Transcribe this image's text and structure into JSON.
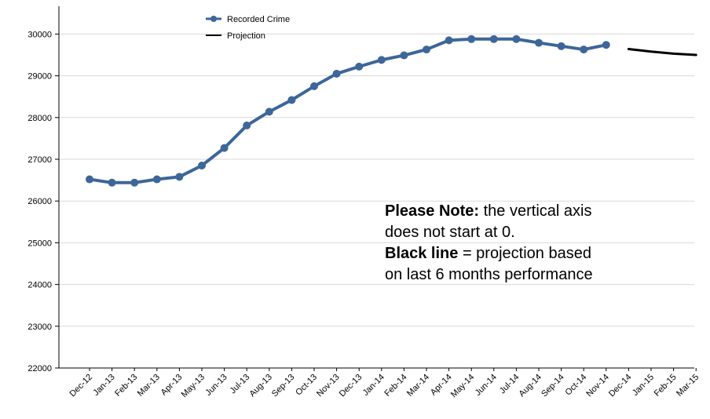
{
  "chart_data": {
    "type": "line",
    "categories": [
      "Dec-12",
      "Jan-13",
      "Feb-13",
      "Mar-13",
      "Apr-13",
      "May-13",
      "Jun-13",
      "Jul-13",
      "Aug-13",
      "Sep-13",
      "Oct-13",
      "Nov-13",
      "Dec-13",
      "Jan-14",
      "Feb-14",
      "Mar-14",
      "Apr-14",
      "May-14",
      "Jun-14",
      "Jul-14",
      "Aug-14",
      "Sep-14",
      "Oct-14",
      "Nov-14",
      "Dec-14",
      "Jan-15",
      "Feb-15",
      "Mar-15"
    ],
    "series": [
      {
        "name": "Recorded Crime",
        "color": "#3d6699",
        "marker": "circle",
        "values": [
          26520,
          26440,
          26440,
          26520,
          26580,
          26850,
          27270,
          27810,
          28140,
          28420,
          28750,
          29050,
          29220,
          29380,
          29490,
          29630,
          29850,
          29880,
          29880,
          29880,
          29790,
          29710,
          29630,
          29740,
          null,
          null,
          null,
          null
        ]
      },
      {
        "name": "Projection",
        "color": "#000000",
        "marker": "none",
        "values": [
          null,
          null,
          null,
          null,
          null,
          null,
          null,
          null,
          null,
          null,
          null,
          null,
          null,
          null,
          null,
          null,
          null,
          null,
          null,
          null,
          null,
          null,
          null,
          null,
          29640,
          29580,
          29530,
          29500
        ]
      }
    ],
    "yticks": [
      22000,
      23000,
      24000,
      25000,
      26000,
      27000,
      28000,
      29000,
      30000
    ],
    "ylim": [
      22000,
      30500
    ],
    "grid": "horizontal",
    "legend_position": "top-left"
  },
  "note": {
    "line1_bold": "Please Note:",
    "line1_rest": " the vertical axis",
    "line2": "does not start at 0.",
    "line3_bold": "Black line",
    "line3_rest": " = projection based",
    "line4": "on last 6 months performance"
  }
}
